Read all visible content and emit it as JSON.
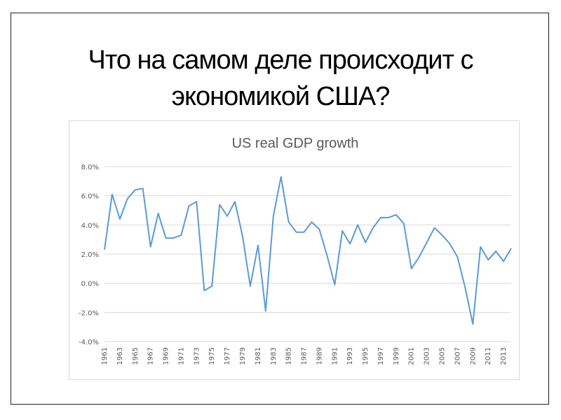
{
  "slide": {
    "title_line1": "Что на самом деле происходит с",
    "title_line2": "экономикой США?"
  },
  "chart_data": {
    "type": "line",
    "title": "US real GDP growth",
    "xlabel": "",
    "ylabel": "",
    "ylim": [
      -0.04,
      0.08
    ],
    "yticks": [
      0.08,
      0.06,
      0.04,
      0.02,
      0.0,
      -0.02,
      -0.04
    ],
    "ytick_labels": [
      "8.0%",
      "6.0%",
      "4.0%",
      "2.0%",
      "0.0%",
      "-2.0%",
      "-4.0%"
    ],
    "xtick_labels": [
      "1961",
      "1963",
      "1965",
      "1967",
      "1969",
      "1971",
      "1973",
      "1975",
      "1977",
      "1979",
      "1981",
      "1983",
      "1985",
      "1987",
      "1989",
      "1991",
      "1993",
      "1995",
      "1997",
      "1999",
      "2001",
      "2003",
      "2005",
      "2007",
      "2009",
      "2011",
      "2013"
    ],
    "grid": "horizontal",
    "line_color": "#5b9bd5",
    "series": [
      {
        "x": [
          1961,
          1962,
          1963,
          1964,
          1965,
          1966,
          1967,
          1968,
          1969,
          1970,
          1971,
          1972,
          1973,
          1974,
          1975,
          1976,
          1977,
          1978,
          1979,
          1980,
          1981,
          1982,
          1983,
          1984,
          1985,
          1986,
          1987,
          1988,
          1989,
          1990,
          1991,
          1992,
          1993,
          1994,
          1995,
          1996,
          1997,
          1998,
          1999,
          2000,
          2001,
          2002,
          2003,
          2004,
          2005,
          2006,
          2007,
          2008,
          2009,
          2010,
          2011,
          2012,
          2013,
          2014
        ],
        "values": [
          0.023,
          0.061,
          0.044,
          0.058,
          0.064,
          0.065,
          0.025,
          0.048,
          0.031,
          0.031,
          0.033,
          0.053,
          0.056,
          -0.005,
          -0.002,
          0.054,
          0.046,
          0.056,
          0.032,
          -0.002,
          0.026,
          -0.019,
          0.046,
          0.073,
          0.042,
          0.035,
          0.035,
          0.042,
          0.037,
          0.019,
          -0.001,
          0.036,
          0.027,
          0.04,
          0.028,
          0.038,
          0.045,
          0.045,
          0.047,
          0.041,
          0.01,
          0.018,
          0.028,
          0.038,
          0.033,
          0.027,
          0.018,
          -0.003,
          -0.028,
          0.025,
          0.016,
          0.022,
          0.015,
          0.024
        ]
      }
    ]
  }
}
